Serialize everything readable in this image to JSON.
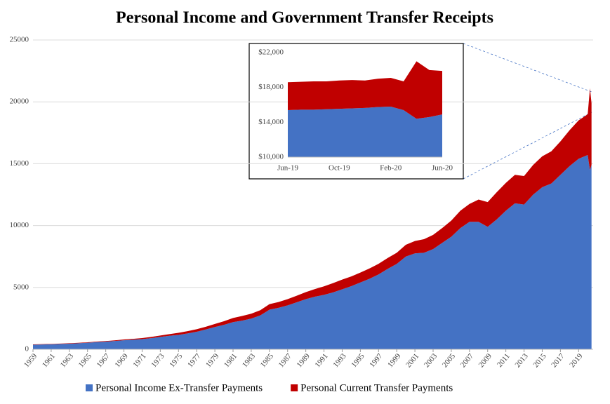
{
  "chart_data": [
    {
      "type": "area",
      "title": "Personal Income and Government Transfer Receipts",
      "x": [
        1959,
        1960,
        1961,
        1962,
        1963,
        1964,
        1965,
        1966,
        1967,
        1968,
        1969,
        1970,
        1971,
        1972,
        1973,
        1974,
        1975,
        1976,
        1977,
        1978,
        1979,
        1980,
        1981,
        1982,
        1983,
        1984,
        1985,
        1986,
        1987,
        1988,
        1989,
        1990,
        1991,
        1992,
        1993,
        1994,
        1995,
        1996,
        1997,
        1998,
        1999,
        2000,
        2001,
        2002,
        2003,
        2004,
        2005,
        2006,
        2007,
        2008,
        2009,
        2010,
        2011,
        2012,
        2013,
        2014,
        2015,
        2016,
        2017,
        2018,
        2019,
        2020,
        2020.25,
        2020.42
      ],
      "series": [
        {
          "name": "Personal Income Ex-Transfer Payments",
          "color": "#4472c4",
          "values": [
            370,
            390,
            405,
            430,
            455,
            490,
            530,
            580,
            615,
            670,
            730,
            770,
            820,
            900,
            1000,
            1090,
            1160,
            1280,
            1420,
            1600,
            1800,
            1980,
            2200,
            2320,
            2480,
            2740,
            3200,
            3350,
            3550,
            3800,
            4050,
            4250,
            4400,
            4600,
            4850,
            5100,
            5400,
            5700,
            6050,
            6500,
            6900,
            7500,
            7750,
            7800,
            8100,
            8600,
            9100,
            9800,
            10300,
            10300,
            9900,
            10500,
            11200,
            11800,
            11700,
            12500,
            13100,
            13400,
            14100,
            14800,
            15400,
            15700,
            14500,
            14900
          ]
        },
        {
          "name": "Personal Current Transfer Payments",
          "color": "#c00000",
          "values": [
            25,
            27,
            30,
            31,
            33,
            34,
            37,
            41,
            48,
            56,
            62,
            75,
            90,
            100,
            115,
            135,
            170,
            185,
            200,
            220,
            250,
            290,
            330,
            370,
            400,
            420,
            450,
            470,
            500,
            530,
            570,
            620,
            690,
            750,
            780,
            790,
            800,
            830,
            860,
            880,
            900,
            950,
            1000,
            1100,
            1150,
            1200,
            1300,
            1400,
            1450,
            1800,
            2000,
            2200,
            2250,
            2300,
            2300,
            2400,
            2500,
            2600,
            2700,
            2900,
            3100,
            3300,
            6600,
            5000
          ]
        }
      ],
      "xlim": [
        1959,
        2020.6
      ],
      "xticks": [
        1959,
        1961,
        1963,
        1965,
        1967,
        1969,
        1971,
        1973,
        1975,
        1977,
        1979,
        1981,
        1983,
        1985,
        1987,
        1989,
        1991,
        1993,
        1995,
        1997,
        1999,
        2001,
        2003,
        2005,
        2007,
        2009,
        2011,
        2013,
        2015,
        2017,
        2019
      ],
      "ylim": [
        0,
        25000
      ],
      "yticks": [
        0,
        5000,
        10000,
        15000,
        20000,
        25000
      ],
      "grid": true,
      "legend": "bottom"
    },
    {
      "type": "area",
      "categories": [
        "Jun-19",
        null,
        null,
        null,
        "Oct-19",
        null,
        null,
        null,
        "Feb-20",
        null,
        null,
        null,
        "Jun-20"
      ],
      "series": [
        {
          "color": "#4472c4",
          "values": [
            15400,
            15450,
            15450,
            15500,
            15550,
            15600,
            15650,
            15750,
            15800,
            15400,
            14400,
            14600,
            14900
          ]
        },
        {
          "color": "#c00000",
          "values": [
            3200,
            3200,
            3250,
            3200,
            3250,
            3250,
            3150,
            3250,
            3300,
            3300,
            6600,
            5400,
            5000
          ]
        }
      ],
      "ylim": [
        10000,
        22000
      ],
      "yticks": [
        {
          "value": 10000,
          "label": "$10,000"
        },
        {
          "value": 14000,
          "label": "$14,000"
        },
        {
          "value": 18000,
          "label": "$18,000"
        },
        {
          "value": 22000,
          "label": "$22,000"
        }
      ],
      "grid": false
    }
  ]
}
